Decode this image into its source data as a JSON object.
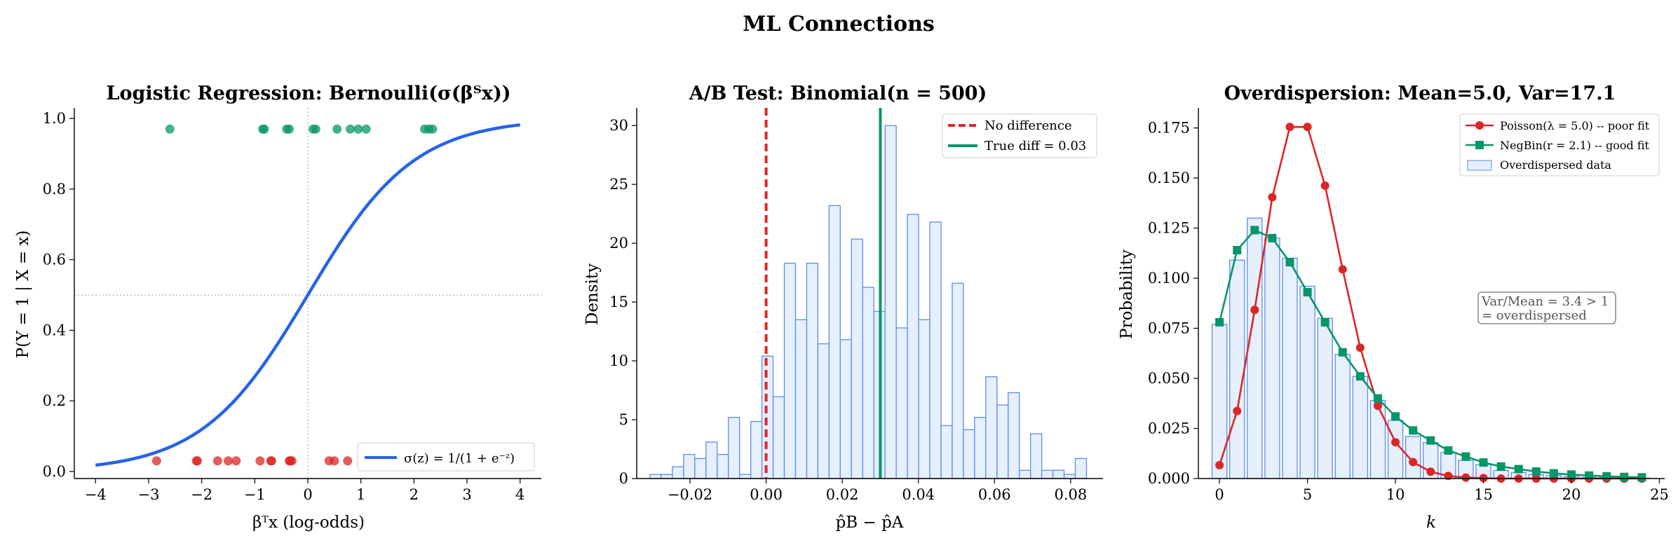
{
  "figure": {
    "suptitle": "ML Connections"
  },
  "colors": {
    "blue": "#2563eb",
    "red": "#dc2626",
    "green": "#059669",
    "hist_fill": "#e6effc",
    "hist_edge": "#5b8def",
    "grey": "#888888"
  },
  "chart_data": [
    {
      "id": "logistic",
      "type": "line+scatter",
      "title": "Logistic Regression: Bernoulli(σ(βᵀx))",
      "xlabel": "βᵀx (log-odds)",
      "ylabel": "P(Y = 1 | X = x)",
      "xlim": [
        -4.4,
        4.4
      ],
      "ylim": [
        -0.02,
        1.03
      ],
      "xticks": [
        -4,
        -3,
        -2,
        -1,
        0,
        1,
        2,
        3,
        4
      ],
      "xtick_labels": [
        "−4",
        "−3",
        "−2",
        "−1",
        "0",
        "1",
        "2",
        "3",
        "4"
      ],
      "yticks": [
        0.0,
        0.2,
        0.4,
        0.6,
        0.8,
        1.0
      ],
      "ytick_labels": [
        "0.0",
        "0.2",
        "0.4",
        "0.6",
        "0.8",
        "1.0"
      ],
      "grid": false,
      "legend": {
        "position": "lower-right",
        "entries": [
          "σ(z) = 1/(1 + e⁻ᶻ)"
        ]
      },
      "curve": {
        "function": "sigmoid",
        "x_range": [
          -4,
          4
        ]
      },
      "reference_lines": {
        "vertical_x": 0,
        "horizontal_y": 0.5
      },
      "points_y1": {
        "y": 0.97,
        "x": [
          -2.6,
          -0.85,
          -0.82,
          -0.4,
          -0.35,
          0.1,
          0.15,
          0.55,
          0.8,
          0.95,
          1.1,
          2.2,
          2.28,
          2.35
        ]
      },
      "points_y0": {
        "y": 0.03,
        "x": [
          -2.85,
          -2.1,
          -2.08,
          -1.7,
          -1.5,
          -1.35,
          -0.9,
          -0.7,
          -0.68,
          -0.35,
          -0.33,
          -0.3,
          0.4,
          0.5,
          0.75
        ]
      }
    },
    {
      "id": "abtest",
      "type": "histogram",
      "title": "A/B Test: Binomial(n = 500)",
      "xlabel": "p̂B − p̂A",
      "ylabel": "Density",
      "xlim": [
        -0.034,
        0.0885
      ],
      "ylim": [
        0,
        31.5
      ],
      "xticks": [
        -0.02,
        0.0,
        0.02,
        0.04,
        0.06,
        0.08
      ],
      "xtick_labels": [
        "−0.02",
        "0.00",
        "0.02",
        "0.04",
        "0.06",
        "0.08"
      ],
      "yticks": [
        0,
        5,
        10,
        15,
        20,
        25,
        30
      ],
      "ytick_labels": [
        "0",
        "5",
        "10",
        "15",
        "20",
        "25",
        "30"
      ],
      "grid": false,
      "legend": {
        "position": "top-right",
        "entries": [
          "No difference",
          "True diff = 0.03"
        ]
      },
      "bins": {
        "start": -0.0305,
        "width": 0.00294
      },
      "values": [
        0.35,
        0.35,
        1.0,
        2.05,
        1.7,
        3.1,
        2.05,
        5.2,
        0.35,
        4.85,
        10.4,
        6.95,
        18.3,
        13.5,
        18.3,
        11.45,
        23.2,
        11.8,
        20.35,
        16.25,
        14.2,
        30.0,
        12.8,
        22.45,
        13.5,
        21.8,
        4.5,
        16.6,
        4.15,
        5.2,
        8.65,
        6.25,
        7.3,
        0.7,
        3.8,
        0.7,
        0.7,
        0.35,
        1.7
      ],
      "vlines": [
        {
          "name": "No difference",
          "x": 0.0,
          "style": "dashed",
          "color": "#dc2626"
        },
        {
          "name": "True diff = 0.03",
          "x": 0.03,
          "style": "solid",
          "color": "#059669"
        }
      ]
    },
    {
      "id": "overdispersion",
      "type": "bar+line",
      "title": "Overdispersion: Mean=5.0, Var=17.1",
      "xlabel": "k",
      "ylabel": "Probability",
      "xlim": [
        -1.2,
        25.3
      ],
      "ylim": [
        0,
        0.185
      ],
      "xticks": [
        0,
        5,
        10,
        15,
        20,
        25
      ],
      "xtick_labels": [
        "0",
        "5",
        "10",
        "15",
        "20",
        "25"
      ],
      "yticks": [
        0.0,
        0.025,
        0.05,
        0.075,
        0.1,
        0.125,
        0.15,
        0.175
      ],
      "ytick_labels": [
        "0.000",
        "0.025",
        "0.050",
        "0.075",
        "0.100",
        "0.125",
        "0.150",
        "0.175"
      ],
      "grid": false,
      "legend": {
        "position": "top-right",
        "entries": [
          "Poisson(λ = 5.0) -- poor fit",
          "NegBin(r = 2.1) -- good fit",
          "Overdispersed data"
        ]
      },
      "annotation": [
        "Var/Mean = 3.4 > 1",
        "= overdispersed"
      ],
      "k": [
        0,
        1,
        2,
        3,
        4,
        5,
        6,
        7,
        8,
        9,
        10,
        11,
        12,
        13,
        14,
        15,
        16,
        17,
        18,
        19,
        20,
        21,
        22,
        23,
        24
      ],
      "data_bars": [
        0.077,
        0.109,
        0.13,
        0.12,
        0.11,
        0.096,
        0.08,
        0.062,
        0.051,
        0.039,
        0.029,
        0.021,
        0.018,
        0.013,
        0.009,
        0.007,
        0.004,
        0.003,
        0.002,
        0.0015,
        0.001,
        0.0005,
        0.0005,
        0.0003,
        0.0002
      ],
      "series": [
        {
          "name": "Poisson(λ = 5.0) -- poor fit",
          "marker": "circle",
          "color": "#dc2626",
          "values": [
            0.0067,
            0.0337,
            0.0842,
            0.1404,
            0.1755,
            0.1755,
            0.1462,
            0.1044,
            0.0653,
            0.0363,
            0.0181,
            0.0082,
            0.0034,
            0.0013,
            0.0005,
            0.0002,
            0.0,
            0.0,
            0.0,
            0.0,
            0.0,
            0.0,
            0.0,
            0.0,
            0.0
          ]
        },
        {
          "name": "NegBin(r = 2.1) -- good fit",
          "marker": "square",
          "color": "#059669",
          "values": [
            0.078,
            0.114,
            0.124,
            0.12,
            0.108,
            0.093,
            0.078,
            0.063,
            0.051,
            0.04,
            0.031,
            0.024,
            0.019,
            0.014,
            0.011,
            0.008,
            0.006,
            0.0047,
            0.0035,
            0.0026,
            0.002,
            0.0015,
            0.0011,
            0.0008,
            0.0006
          ]
        }
      ]
    }
  ]
}
